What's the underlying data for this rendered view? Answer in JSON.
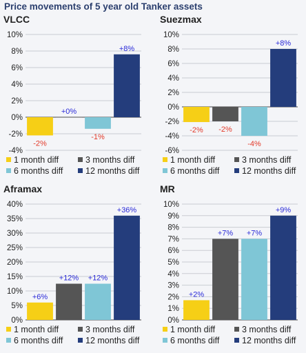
{
  "page_title": "Price movements of 5 year old Tanker assets",
  "colors": {
    "1 month diff": "#f6cf16",
    "3 months diff": "#555555",
    "6 months diff": "#7fc6d6",
    "12 months diff": "#243d7c",
    "positive_label": "#2a2ad8",
    "negative_label": "#e23a2a"
  },
  "legend": [
    "1 month diff",
    "3 months diff",
    "6 months diff",
    "12 months diff"
  ],
  "chart_data": [
    {
      "type": "bar",
      "title": "VLCC",
      "categories": [
        "1 month diff",
        "3 months diff",
        "6 months diff",
        "12 months diff"
      ],
      "values": [
        -2.2,
        0,
        -1.4,
        7.6
      ],
      "data_labels": [
        "-2%",
        "+0%",
        "-1%",
        "+8%"
      ],
      "ylim": [
        -4,
        10
      ],
      "yticks": [
        "-4%",
        "-2%",
        "0%",
        "2%",
        "4%",
        "6%",
        "8%",
        "10%"
      ],
      "grid": true
    },
    {
      "type": "bar",
      "title": "Suezmax",
      "categories": [
        "1 month diff",
        "3 months diff",
        "6 months diff",
        "12 months diff"
      ],
      "values": [
        -2.1,
        -2.0,
        -4.0,
        8.0
      ],
      "data_labels": [
        "-2%",
        "-2%",
        "-4%",
        "+8%"
      ],
      "ylim": [
        -6,
        10
      ],
      "yticks": [
        "-6%",
        "-4%",
        "-2%",
        "0%",
        "2%",
        "4%",
        "6%",
        "8%",
        "10%"
      ],
      "grid": true
    },
    {
      "type": "bar",
      "title": "Aframax",
      "categories": [
        "1 month diff",
        "3 months diff",
        "6 months diff",
        "12 months diff"
      ],
      "values": [
        6,
        12.5,
        12.5,
        36
      ],
      "data_labels": [
        "+6%",
        "+12%",
        "+12%",
        "+36%"
      ],
      "ylim": [
        0,
        40
      ],
      "yticks": [
        "0%",
        "5%",
        "10%",
        "15%",
        "20%",
        "25%",
        "30%",
        "35%",
        "40%"
      ],
      "grid": true
    },
    {
      "type": "bar",
      "title": "MR",
      "categories": [
        "1 month diff",
        "3 months diff",
        "6 months diff",
        "12 months diff"
      ],
      "values": [
        1.7,
        7,
        7,
        9
      ],
      "data_labels": [
        "+2%",
        "+7%",
        "+7%",
        "+9%"
      ],
      "ylim": [
        0,
        10
      ],
      "yticks": [
        "0%",
        "1%",
        "2%",
        "3%",
        "4%",
        "5%",
        "6%",
        "7%",
        "8%",
        "9%",
        "10%"
      ],
      "grid": true
    }
  ]
}
